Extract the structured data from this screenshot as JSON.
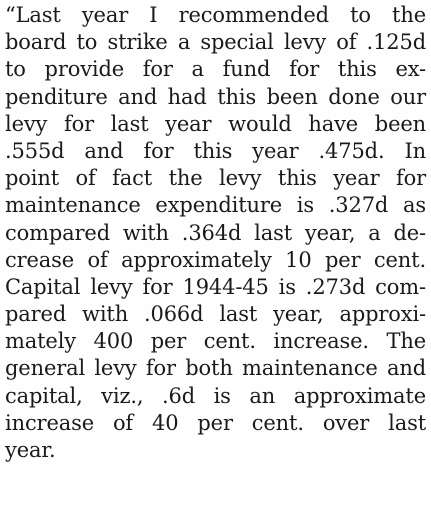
{
  "article": {
    "lines": [
      "“Last year I recommended to the",
      "board to strike a special levy of .125d",
      "to provide for a fund for this ex-",
      "penditure and had this been done our",
      "levy for last year would have been",
      ".555d and for this year .475d. In",
      "point of fact the levy this year for",
      "maintenance expenditure is .327d as",
      "compared with .364d last year, a de-",
      "crease of approximately 10 per cent.",
      "Capital levy for 1944-45 is .273d com-",
      "pared with .066d last year, approxi-",
      "mately 400 per cent. increase. The",
      "general levy for both maintenance and",
      "capital, viz., .6d is an approximate",
      "increase of 40 per cent. over last",
      "year."
    ]
  }
}
